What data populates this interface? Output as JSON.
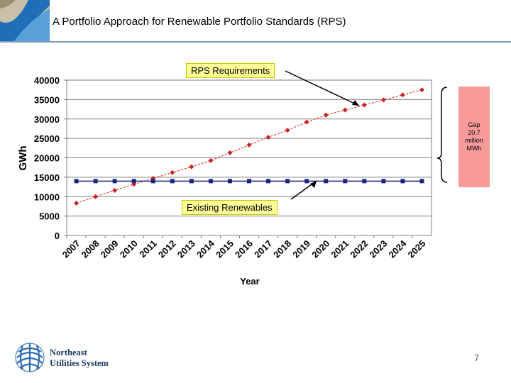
{
  "slide": {
    "title": "A Portfolio Approach for Renewable Portfolio Standards (RPS)",
    "page_number": "7"
  },
  "company": {
    "line1": "Northeast",
    "line2": "Utilities System"
  },
  "annotations": {
    "rps_label": "RPS Requirements",
    "existing_label": "Existing Renewables",
    "gap_line1": "Gap",
    "gap_line2": "20.7",
    "gap_line3": "million",
    "gap_line4": "MWh"
  },
  "colors": {
    "rps_series": "#cc2222",
    "existing_series": "#1a237e",
    "plot_bg": "#ffffff",
    "gap_box": "#f99a9a",
    "callout_bg": "#ffff99"
  },
  "chart_data": {
    "type": "line",
    "title": "",
    "xlabel": "Year",
    "ylabel": "GWh",
    "ylim": [
      0,
      40000
    ],
    "yticks": [
      0,
      5000,
      10000,
      15000,
      20000,
      25000,
      30000,
      35000,
      40000
    ],
    "categories": [
      "2007",
      "2008",
      "2009",
      "2010",
      "2011",
      "2012",
      "2013",
      "2014",
      "2015",
      "2016",
      "2017",
      "2018",
      "2019",
      "2020",
      "2021",
      "2022",
      "2023",
      "2024",
      "2025"
    ],
    "grid": "horizontal",
    "series": [
      {
        "name": "RPS Requirements",
        "marker": "diamond",
        "values": [
          8300,
          10000,
          11600,
          13200,
          14700,
          16200,
          17700,
          19300,
          21300,
          23300,
          25300,
          27100,
          29200,
          31000,
          32300,
          33600,
          34900,
          36200,
          37500
        ]
      },
      {
        "name": "Existing Renewables",
        "marker": "square",
        "values": [
          14000,
          14000,
          14000,
          14000,
          14000,
          14000,
          14000,
          14000,
          14000,
          14000,
          14000,
          14000,
          14000,
          14000,
          14000,
          14000,
          14000,
          14000,
          14000
        ]
      }
    ]
  }
}
